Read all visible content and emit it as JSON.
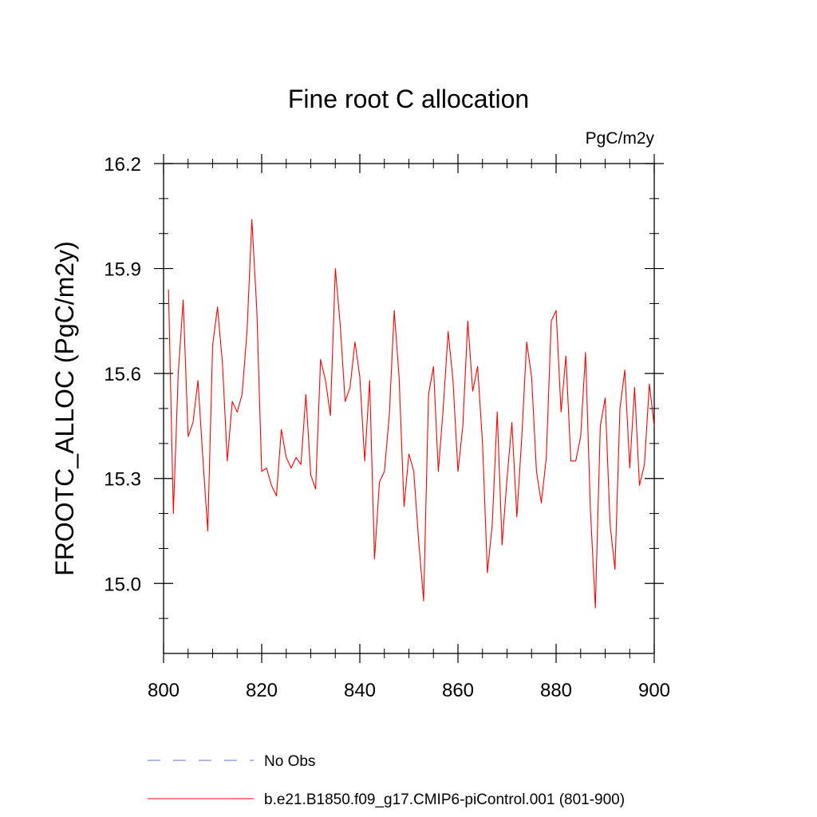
{
  "chart_data": {
    "type": "line",
    "title": "Fine root C allocation",
    "units": "PgC/m2y",
    "xlabel": "",
    "ylabel": "FROOTC_ALLOC  (PgC/m2y)",
    "xlim": [
      800,
      900
    ],
    "ylim": [
      14.8,
      16.2
    ],
    "x_ticks": [
      800,
      820,
      840,
      860,
      880,
      900
    ],
    "x_tick_labels": [
      "800",
      "820",
      "840",
      "860",
      "880",
      "900"
    ],
    "y_ticks": [
      15.0,
      15.3,
      15.6,
      15.9,
      16.2
    ],
    "y_tick_labels": [
      "15.0",
      "15.3",
      "15.6",
      "15.9",
      "16.2"
    ],
    "legend": [
      {
        "name": "No Obs",
        "color": "#6e6ec8",
        "style": "dashed"
      },
      {
        "name": "b.e21.B1850.f09_g17.CMIP6-piControl.001 (801-900)",
        "color": "#ff0000",
        "style": "solid"
      }
    ],
    "series": [
      {
        "name": "b.e21.B1850.f09_g17.CMIP6-piControl.001 (801-900)",
        "color": "#ff0000",
        "x": [
          801,
          802,
          803,
          804,
          805,
          806,
          807,
          808,
          809,
          810,
          811,
          812,
          813,
          814,
          815,
          816,
          817,
          818,
          819,
          820,
          821,
          822,
          823,
          824,
          825,
          826,
          827,
          828,
          829,
          830,
          831,
          832,
          833,
          834,
          835,
          836,
          837,
          838,
          839,
          840,
          841,
          842,
          843,
          844,
          845,
          846,
          847,
          848,
          849,
          850,
          851,
          852,
          853,
          854,
          855,
          856,
          857,
          858,
          859,
          860,
          861,
          862,
          863,
          864,
          865,
          866,
          867,
          868,
          869,
          870,
          871,
          872,
          873,
          874,
          875,
          876,
          877,
          878,
          879,
          880,
          881,
          882,
          883,
          884,
          885,
          886,
          887,
          888,
          889,
          890,
          891,
          892,
          893,
          894,
          895,
          896,
          897,
          898,
          899,
          900
        ],
        "values": [
          15.84,
          15.2,
          15.6,
          15.81,
          15.42,
          15.46,
          15.58,
          15.36,
          15.15,
          15.68,
          15.79,
          15.63,
          15.35,
          15.52,
          15.49,
          15.54,
          15.72,
          16.04,
          15.78,
          15.32,
          15.33,
          15.28,
          15.25,
          15.44,
          15.36,
          15.33,
          15.36,
          15.34,
          15.54,
          15.31,
          15.27,
          15.64,
          15.58,
          15.48,
          15.9,
          15.74,
          15.52,
          15.56,
          15.69,
          15.59,
          15.35,
          15.58,
          15.07,
          15.29,
          15.32,
          15.48,
          15.78,
          15.59,
          15.22,
          15.37,
          15.32,
          15.12,
          14.95,
          15.54,
          15.62,
          15.32,
          15.5,
          15.72,
          15.58,
          15.32,
          15.45,
          15.75,
          15.55,
          15.62,
          15.4,
          15.03,
          15.17,
          15.49,
          15.11,
          15.3,
          15.46,
          15.19,
          15.42,
          15.69,
          15.59,
          15.32,
          15.23,
          15.36,
          15.75,
          15.78,
          15.49,
          15.65,
          15.35,
          15.35,
          15.42,
          15.66,
          15.21,
          14.93,
          15.45,
          15.53,
          15.17,
          15.04,
          15.5,
          15.61,
          15.33,
          15.56,
          15.28,
          15.34,
          15.57,
          15.45
        ]
      }
    ]
  }
}
